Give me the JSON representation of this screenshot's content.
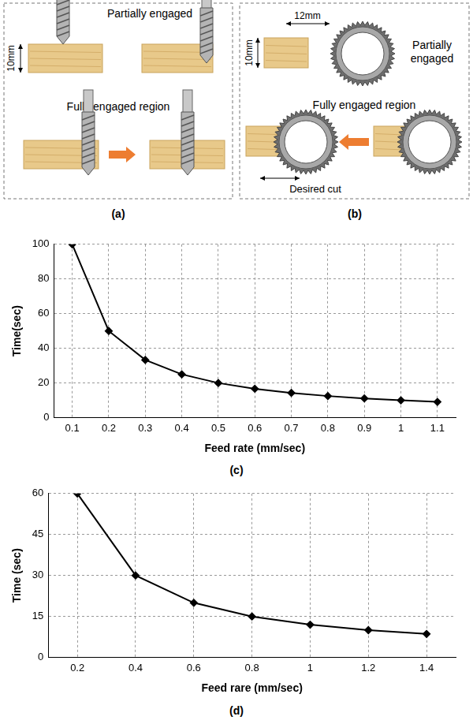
{
  "diagrams": [
    {
      "panel": "(a)",
      "thickness": "10mm",
      "top": "Partially engaged",
      "bottom": "Fully engaged region"
    },
    {
      "panel": "(b)",
      "width": "12mm",
      "thickness": "10mm",
      "top": "Partially engaged",
      "bottom": "Fully engaged region",
      "cut": "Desired cut"
    }
  ],
  "chart_data": [
    {
      "type": "line",
      "panel": "(c)",
      "x_label": "Feed rate (mm/sec)",
      "y_label": "Time(sec)",
      "categories": [
        "0.1",
        "0.2",
        "0.3",
        "0.4",
        "0.5",
        "0.6",
        "0.7",
        "0.8",
        "0.9",
        "1",
        "1.1"
      ],
      "values": [
        100,
        50,
        33.3,
        25,
        20,
        16.7,
        14.3,
        12.5,
        11.1,
        10,
        9.1
      ],
      "color": "#000000",
      "marker": "diamond",
      "line_style": "solid",
      "ylim": [
        0,
        100
      ],
      "yticks": [
        0,
        20,
        40,
        60,
        80,
        100
      ],
      "grid": true
    },
    {
      "type": "line",
      "panel": "(d)",
      "x_label": "Feed rare (mm/sec)",
      "y_label": "Time (sec)",
      "categories": [
        "0.2",
        "0.4",
        "0.6",
        "0.8",
        "1",
        "1.2",
        "1.4"
      ],
      "values": [
        60,
        30,
        20,
        15,
        12,
        10,
        8.6
      ],
      "color": "#000000",
      "marker": "diamond",
      "line_style": "solid",
      "ylim": [
        0,
        60
      ],
      "yticks": [
        0,
        15,
        30,
        45,
        60
      ],
      "grid": true
    }
  ]
}
